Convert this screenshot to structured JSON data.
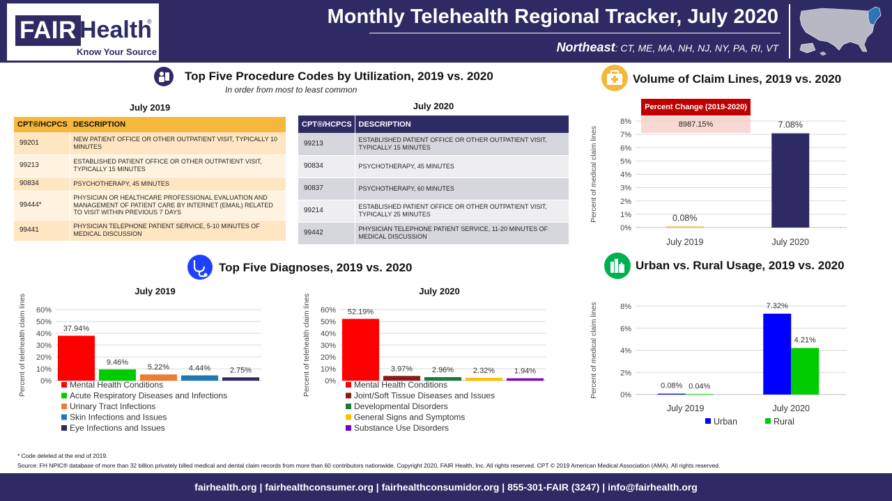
{
  "header": {
    "logo_fair": "FAIR",
    "logo_health": "Health",
    "logo_reg": "®",
    "logo_tagline": "Know Your Source",
    "title": "Monthly Telehealth Regional Tracker, July 2020",
    "region_name": "Northeast",
    "region_states": ": CT, ME, MA, NH, NJ, NY, PA, RI, VT",
    "map_highlight_color": "#2e75b6"
  },
  "procedures": {
    "title": "Top Five Procedure Codes by Utilization, 2019 vs. 2020",
    "subtitle": "In order from most to least common",
    "y2019": {
      "label": "July 2019",
      "col_code": "CPT®/HCPCS",
      "col_desc": "DESCRIPTION",
      "rows": [
        {
          "code": "99201",
          "desc": "NEW PATIENT OFFICE OR OTHER OUTPATIENT VISIT, TYPICALLY 10 MINUTES"
        },
        {
          "code": "99213",
          "desc": "ESTABLISHED PATIENT OFFICE OR OTHER OUTPATIENT VISIT, TYPICALLY 15 MINUTES"
        },
        {
          "code": "90834",
          "desc": "PSYCHOTHERAPY, 45 MINUTES"
        },
        {
          "code": "99444*",
          "desc": "PHYSICIAN OR HEALTHCARE PROFESSIONAL EVALUATION AND MANAGEMENT OF PATIENT CARE BY INTERNET (EMAIL) RELATED TO VISIT WITHIN PREVIOUS 7 DAYS"
        },
        {
          "code": "99441",
          "desc": "PHYSICIAN TELEPHONE PATIENT SERVICE, 5-10 MINUTES OF MEDICAL DISCUSSION"
        }
      ]
    },
    "y2020": {
      "label": "July 2020",
      "col_code": "CPT®/HCPCS",
      "col_desc": "DESCRIPTION",
      "rows": [
        {
          "code": "99213",
          "desc": "ESTABLISHED PATIENT OFFICE OR OTHER OUTPATIENT VISIT, TYPICALLY 15 MINUTES"
        },
        {
          "code": "90834",
          "desc": "PSYCHOTHERAPY, 45 MINUTES"
        },
        {
          "code": "90837",
          "desc": "PSYCHOTHERAPY, 60 MINUTES"
        },
        {
          "code": "99214",
          "desc": "ESTABLISHED PATIENT OFFICE OR OTHER OUTPATIENT VISIT, TYPICALLY 25 MINUTES"
        },
        {
          "code": "99442",
          "desc": "PHYSICIAN TELEPHONE PATIENT SERVICE, 11-20 MINUTES OF MEDICAL DISCUSSION"
        }
      ]
    }
  },
  "volume": {
    "title": "Volume of Claim Lines, 2019 vs. 2020",
    "pct_change_label": "Percent Change (2019-2020)",
    "pct_change_value": "8987.15%"
  },
  "diagnoses": {
    "title": "Top Five Diagnoses, 2019 vs. 2020"
  },
  "urban": {
    "title": "Urban vs. Rural Usage, 2019 vs. 2020"
  },
  "chart_data": [
    {
      "id": "diag2019",
      "type": "bar",
      "title": "July 2019",
      "ylabel": "Percent of telehealth claim lines",
      "ylim": [
        0,
        60
      ],
      "yticks": [
        0,
        10,
        20,
        30,
        40,
        50,
        60
      ],
      "yticks_label": [
        "0%",
        "10%",
        "20%",
        "30%",
        "40%",
        "50%",
        "60%"
      ],
      "categories": [
        "Mental Health Conditions",
        "Acute Respiratory Diseases and Infections",
        "Urinary Tract Infections",
        "Skin Infections and Issues",
        "Eye Infections and Issues"
      ],
      "values": [
        37.94,
        9.46,
        5.22,
        4.44,
        2.75
      ],
      "value_labels": [
        "37.94%",
        "9.46%",
        "5.22%",
        "4.44%",
        "2.75%"
      ],
      "colors": [
        "#ff0000",
        "#00cc00",
        "#ed7d31",
        "#1f77b4",
        "#2e2a63"
      ],
      "legend": "bottom",
      "grid": true
    },
    {
      "id": "diag2020",
      "type": "bar",
      "title": "July 2020",
      "ylabel": "Percent of telehealth claim lines",
      "ylim": [
        0,
        60
      ],
      "yticks": [
        0,
        10,
        20,
        30,
        40,
        50,
        60
      ],
      "yticks_label": [
        "0%",
        "10%",
        "20%",
        "30%",
        "40%",
        "50%",
        "60%"
      ],
      "categories": [
        "Mental Health Conditions",
        "Joint/Soft Tissue Diseases and Issues",
        "Developmental Disorders",
        "General Signs and Symptoms",
        "Substance Use Disorders"
      ],
      "values": [
        52.19,
        3.97,
        2.96,
        2.32,
        1.94
      ],
      "value_labels": [
        "52.19%",
        "3.97%",
        "2.96%",
        "2.32%",
        "1.94%"
      ],
      "colors": [
        "#ff0000",
        "#8b1a1a",
        "#1a7a3a",
        "#ffc000",
        "#7a00cc"
      ],
      "legend": "bottom",
      "grid": true
    },
    {
      "id": "volume",
      "type": "bar",
      "title": "",
      "ylabel": "Percent of medical claim lines",
      "ylim": [
        0,
        8
      ],
      "yticks": [
        0,
        1,
        2,
        3,
        4,
        5,
        6,
        7,
        8
      ],
      "yticks_label": [
        "0%",
        "1%",
        "2%",
        "3%",
        "4%",
        "5%",
        "6%",
        "7%",
        "8%"
      ],
      "categories": [
        "July 2019",
        "July 2020"
      ],
      "values": [
        0.08,
        7.08
      ],
      "value_labels": [
        "0.08%",
        "7.08%"
      ],
      "colors": [
        "#f6b83c",
        "#2e2a63"
      ],
      "grid": true
    },
    {
      "id": "urbanrural",
      "type": "bar",
      "title": "",
      "ylabel": "Percent of medical claim lines",
      "ylim": [
        0,
        8
      ],
      "yticks": [
        0,
        2,
        4,
        6,
        8
      ],
      "yticks_label": [
        "0%",
        "2%",
        "4%",
        "6%",
        "8%"
      ],
      "categories": [
        "July 2019",
        "July 2020"
      ],
      "series": [
        {
          "name": "Urban",
          "values": [
            0.08,
            7.32
          ],
          "value_labels": [
            "0.08%",
            "7.32%"
          ],
          "color": "#0000ff"
        },
        {
          "name": "Rural",
          "values": [
            0.04,
            4.21
          ],
          "value_labels": [
            "0.04%",
            "4.21%"
          ],
          "color": "#00cc00"
        }
      ],
      "legend": "bottom",
      "grid": true
    }
  ],
  "footer": {
    "footnote": "* Code deleted at the end of 2019.",
    "source": "Source: FH NPIC® database of more than 32 billion privately billed medical and dental claim records from more than 60 contributors nationwide. Copyright 2020, FAIR Health, Inc. All rights reserved. CPT © 2019 American Medical Association (AMA). All rights reserved.",
    "links": "fairhealth.org  |  fairhealthconsumer.org  |  fairhealthconsumidor.org  |  855-301-FAIR (3247)  |  info@fairhealth.org"
  }
}
